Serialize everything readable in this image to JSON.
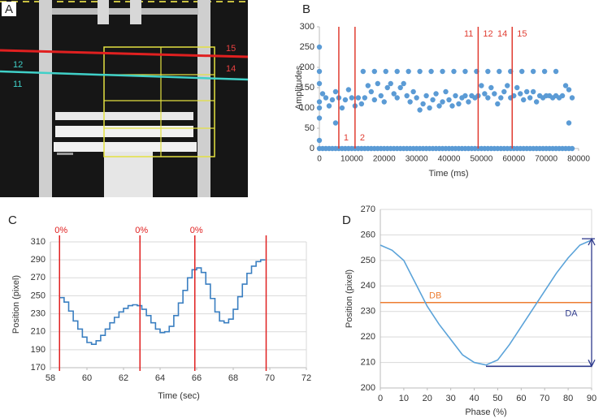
{
  "image_panel": {
    "label": "A",
    "line_labels": [
      "15",
      "14",
      "12",
      "11"
    ]
  },
  "chart_data": [
    {
      "type": "scatter",
      "label": "B",
      "ylabel": "Amplitudes",
      "xlabel": "Time (ms)",
      "xlim": [
        0,
        80000
      ],
      "xticks": [
        0,
        10000,
        20000,
        30000,
        40000,
        50000,
        60000,
        70000,
        80000
      ],
      "ylim": [
        0,
        300
      ],
      "yticks": [
        0,
        50,
        100,
        150,
        200,
        250,
        300
      ],
      "grid": false,
      "x": [
        0,
        1000,
        2000,
        3000,
        4000,
        5000,
        6000,
        7000,
        8000,
        9000,
        10000,
        11000,
        12000,
        13000,
        14000,
        15000,
        16000,
        17000,
        18000,
        19000,
        20000,
        21000,
        22000,
        23000,
        24000,
        25000,
        26000,
        27000,
        28000,
        29000,
        30000,
        31000,
        32000,
        33000,
        34000,
        35000,
        36000,
        37000,
        38000,
        39000,
        40000,
        41000,
        42000,
        43000,
        44000,
        45000,
        46000,
        47000,
        48000,
        49000,
        50000,
        51000,
        52000,
        53000,
        54000,
        55000,
        56000,
        57000,
        58000,
        59000,
        60000,
        61000,
        62000,
        63000,
        64000,
        65000,
        66000,
        67000,
        68000,
        69000,
        70000,
        71000,
        72000,
        73000,
        74000,
        75000,
        76000,
        77000,
        78000
      ],
      "series": [
        {
          "color": "#5b9bd5",
          "values": [
            115,
            135,
            125,
            105,
            120,
            140,
            125,
            100,
            120,
            145,
            125,
            105,
            125,
            110,
            125,
            155,
            140,
            120,
            160,
            130,
            115,
            150,
            160,
            135,
            125,
            150,
            160,
            130,
            115,
            140,
            125,
            95,
            110,
            130,
            100,
            120,
            135,
            105,
            115,
            140,
            120,
            105,
            130,
            110,
            125,
            130,
            115,
            130,
            125,
            130,
            155,
            135,
            125,
            150,
            135,
            110,
            125,
            140,
            155,
            125,
            130,
            150,
            135,
            120,
            140,
            125,
            140,
            115,
            130,
            125,
            130,
            130,
            125,
            130,
            125,
            130,
            155,
            145,
            125
          ]
        },
        {
          "color": "#5b9bd5",
          "values": [
            0,
            0,
            0,
            0,
            0,
            0,
            0,
            0,
            0,
            0,
            0,
            0,
            0,
            0,
            0,
            0,
            0,
            0,
            0,
            0,
            0,
            0,
            0,
            0,
            0,
            0,
            0,
            0,
            0,
            0,
            0,
            0,
            0,
            0,
            0,
            0,
            0,
            0,
            0,
            0,
            0,
            0,
            0,
            0,
            0,
            0,
            0,
            0,
            0,
            0,
            0,
            0,
            0,
            0,
            0,
            0,
            0,
            0,
            0,
            0,
            0,
            0,
            0,
            0,
            0,
            0,
            0,
            0,
            0,
            0,
            0,
            0,
            0,
            0,
            0,
            0,
            0,
            0,
            0
          ]
        },
        {
          "color": "#5b9bd5",
          "x": [
            0,
            0,
            0,
            0,
            0,
            0,
            5000,
            77000,
            13500,
            17000,
            20500,
            24000,
            27500,
            31000,
            34500,
            38000,
            41500,
            45000,
            48500,
            52000,
            55500,
            59000,
            62500,
            66000,
            69500,
            73000
          ],
          "values": [
            250,
            190,
            160,
            100,
            75,
            20,
            63,
            63,
            190,
            190,
            190,
            190,
            190,
            190,
            190,
            190,
            190,
            190,
            190,
            190,
            190,
            190,
            190,
            190,
            190,
            190
          ]
        }
      ],
      "markers": [
        {
          "x": 6000,
          "right": "1"
        },
        {
          "x": 11000,
          "right": "2"
        },
        {
          "x": 49000,
          "left": "11",
          "right": "12"
        },
        {
          "x": 59500,
          "left": "14",
          "right": "15"
        }
      ],
      "marker_color": "#e03c31"
    },
    {
      "type": "line",
      "label": "C",
      "ylabel": "Position (pixel)",
      "xlabel": "Time (sec)",
      "xlim": [
        58,
        72
      ],
      "xticks": [
        58,
        60,
        62,
        64,
        66,
        68,
        70,
        72
      ],
      "ylim": [
        170,
        310
      ],
      "yticks": [
        170,
        190,
        210,
        230,
        250,
        270,
        290,
        310
      ],
      "grid": true,
      "drawstyle": "steps-post",
      "x": [
        58.5,
        58.75,
        59,
        59.25,
        59.5,
        59.75,
        60,
        60.25,
        60.5,
        60.75,
        61,
        61.25,
        61.5,
        61.75,
        62,
        62.25,
        62.5,
        62.75,
        63,
        63.25,
        63.5,
        63.75,
        64,
        64.25,
        64.5,
        64.75,
        65,
        65.25,
        65.5,
        65.75,
        66,
        66.25,
        66.5,
        66.75,
        67,
        67.25,
        67.5,
        67.75,
        68,
        68.25,
        68.5,
        68.75,
        69,
        69.25,
        69.5,
        69.75
      ],
      "series": [
        {
          "color": "#3a7fc1",
          "values": [
            248,
            243,
            233,
            222,
            213,
            204,
            198,
            196,
            200,
            206,
            213,
            220,
            226,
            232,
            236,
            239,
            240,
            239,
            235,
            228,
            220,
            213,
            209,
            210,
            216,
            228,
            242,
            256,
            270,
            279,
            281,
            276,
            263,
            247,
            232,
            222,
            220,
            224,
            235,
            249,
            263,
            275,
            283,
            288,
            290,
            290
          ]
        }
      ],
      "markers": [
        {
          "x": 58.5,
          "top": "0%"
        },
        {
          "x": 62.9,
          "top": "0%"
        },
        {
          "x": 65.9,
          "top": "0%"
        },
        {
          "x": 69.8
        }
      ],
      "marker_color": "#e02020"
    },
    {
      "type": "line",
      "label": "D",
      "ylabel": "Position (pixel)",
      "xlabel": "Phase (%)",
      "xlim": [
        0,
        90
      ],
      "xticks": [
        0,
        10,
        20,
        30,
        40,
        50,
        60,
        70,
        80,
        90
      ],
      "ylim": [
        200,
        270
      ],
      "yticks": [
        200,
        210,
        220,
        230,
        240,
        250,
        260,
        270
      ],
      "grid": true,
      "x": [
        0,
        5,
        10,
        15,
        20,
        25,
        30,
        35,
        40,
        45,
        50,
        55,
        60,
        65,
        70,
        75,
        80,
        85,
        90
      ],
      "series": [
        {
          "color": "#5ba3d9",
          "values": [
            256,
            254,
            250,
            241,
            232,
            225,
            219,
            213,
            210,
            209,
            211,
            217,
            224,
            231,
            238,
            245,
            251,
            256,
            258
          ]
        },
        {
          "color": "#2e3a8c",
          "x": [
            45,
            90
          ],
          "values": [
            208.5,
            208.5
          ]
        }
      ],
      "hlines": [
        {
          "label": "DB",
          "y": 233.5,
          "color": "#ed7d31"
        }
      ],
      "arrow": {
        "label": "DA",
        "x": 90,
        "y": [
          208.5,
          258.5
        ],
        "color": "#2e3a8c"
      }
    }
  ]
}
